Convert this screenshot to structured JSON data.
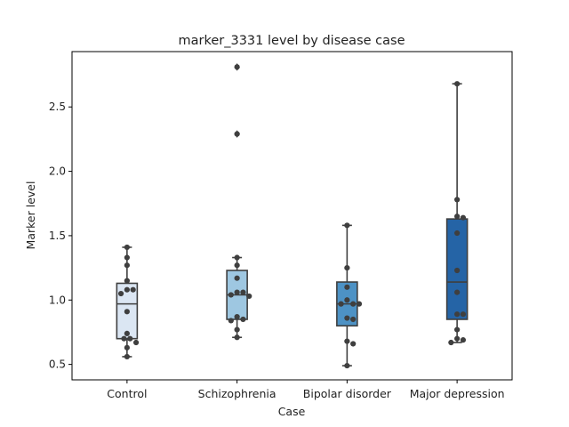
{
  "chart_data": {
    "type": "box",
    "title": "marker_3331 level by disease case",
    "xlabel": "Case",
    "ylabel": "Marker level",
    "ylim": [
      0.38,
      2.93
    ],
    "yticks": [
      0.5,
      1.0,
      1.5,
      2.0,
      2.5
    ],
    "ytick_labels": [
      "0.5",
      "1.0",
      "1.5",
      "2.0",
      "2.5"
    ],
    "grid": false,
    "categories": [
      "Control",
      "Schizophrenia",
      "Bipolar disorder",
      "Major depression"
    ],
    "colors": [
      "#dbe6f3",
      "#9ec7e1",
      "#4d92c5",
      "#2564a6"
    ],
    "edge_color": "#3f3f3f",
    "point_color": "#3f3f3f",
    "boxes": [
      {
        "whislo": 0.56,
        "q1": 0.7,
        "med": 0.97,
        "q3": 1.13,
        "whishi": 1.41,
        "fliers": []
      },
      {
        "whislo": 0.71,
        "q1": 0.85,
        "med": 1.04,
        "q3": 1.23,
        "whishi": 1.33,
        "fliers": [
          2.29,
          2.81
        ]
      },
      {
        "whislo": 0.49,
        "q1": 0.8,
        "med": 0.97,
        "q3": 1.14,
        "whishi": 1.58,
        "fliers": []
      },
      {
        "whislo": 0.67,
        "q1": 0.85,
        "med": 1.14,
        "q3": 1.63,
        "whishi": 2.68,
        "fliers": []
      }
    ],
    "points": [
      [
        1.41,
        1.33,
        1.27,
        1.15,
        1.08,
        1.08,
        1.05,
        0.91,
        0.74,
        0.7,
        0.7,
        0.67,
        0.63,
        0.56
      ],
      [
        2.81,
        2.29,
        1.33,
        1.27,
        1.17,
        1.06,
        1.06,
        1.04,
        1.03,
        0.87,
        0.85,
        0.84,
        0.77,
        0.71
      ],
      [
        1.58,
        1.25,
        1.1,
        1.0,
        0.97,
        0.97,
        0.97,
        0.86,
        0.85,
        0.68,
        0.66,
        0.49
      ],
      [
        2.68,
        1.78,
        1.65,
        1.64,
        1.52,
        1.23,
        1.06,
        0.89,
        0.89,
        0.77,
        0.7,
        0.69,
        0.67
      ]
    ]
  }
}
